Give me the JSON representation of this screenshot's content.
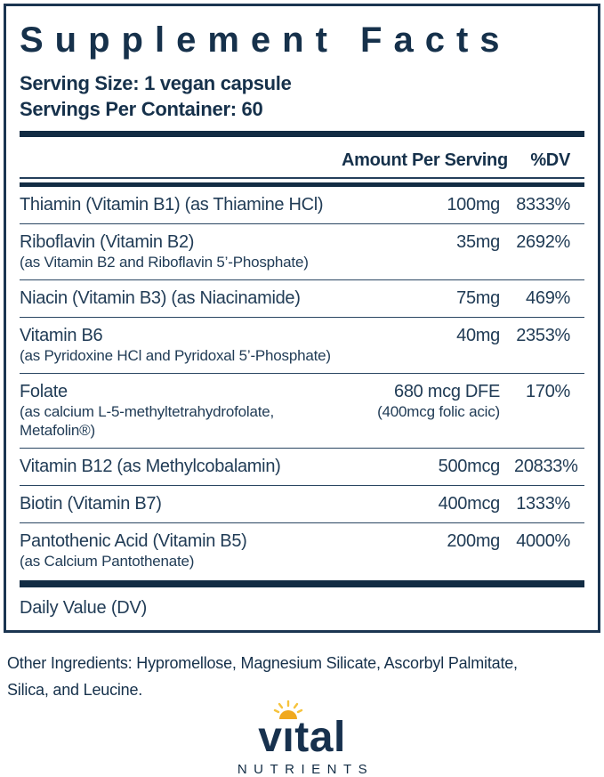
{
  "panel": {
    "title": "Supplement Facts",
    "serving_size": "Serving Size: 1 vegan capsule",
    "servings_per_container": "Servings Per Container: 60",
    "columns": {
      "amount": "Amount Per Serving",
      "dv": "%DV"
    },
    "rows": [
      {
        "name": "Thiamin (Vitamin B1) (as Thiamine HCl)",
        "amount": "100mg",
        "dv": "8333%"
      },
      {
        "name": "Riboflavin (Vitamin B2)",
        "sub": "(as Vitamin B2 and Riboflavin 5’-Phosphate)",
        "amount": "35mg",
        "dv": "2692%"
      },
      {
        "name": "Niacin (Vitamin B3) (as Niacinamide)",
        "amount": "75mg",
        "dv": "469%"
      },
      {
        "name": "Vitamin B6",
        "sub": "(as Pyridoxine HCl and Pyridoxal 5’-Phosphate)",
        "amount": "40mg",
        "dv": "2353%"
      },
      {
        "name": "Folate",
        "sub": "(as calcium L-5-methyltetrahydrofolate,",
        "sub2": "Metafolin®)",
        "amount": "680 mcg  DFE",
        "amount_sub": "(400mcg folic acic)",
        "dv": "170%"
      },
      {
        "name": "Vitamin B12 (as Methylcobalamin)",
        "amount": "500mcg",
        "dv": "20833%"
      },
      {
        "name": "Biotin (Vitamin B7)",
        "amount": "400mcg",
        "dv": "1333%"
      },
      {
        "name": "Pantothenic Acid (Vitamin B5)",
        "sub": "(as Calcium Pantothenate)",
        "amount": "200mg",
        "dv": "4000%"
      }
    ],
    "footer_note": "Daily Value (DV)"
  },
  "other_ingredients_lines": [
    "Other Ingredients: Hypromellose, Magnesium Silicate, Ascorbyl Palmitate,",
    "Silica, and Leucine."
  ],
  "brand": {
    "name": "vital",
    "subname": "NUTRIENTS"
  },
  "colors": {
    "navy_text": "#1c374f",
    "heavy_bar": "#122c44",
    "panel_border": "#1b3551",
    "sun_gold": "#f0a91f",
    "sun_ray": "#f6c33d"
  }
}
